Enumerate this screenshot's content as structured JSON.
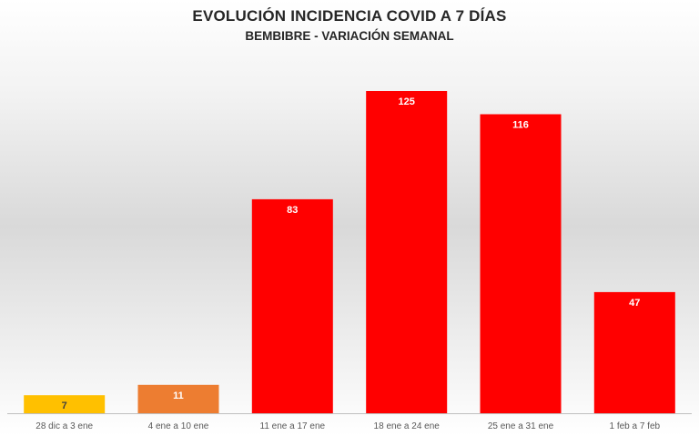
{
  "chart_data": {
    "type": "bar",
    "title": "EVOLUCIÓN INCIDENCIA COVID A 7 DÍAS",
    "subtitle": "BEMBIBRE - VARIACIÓN SEMANAL",
    "xlabel": "",
    "ylabel": "",
    "categories": [
      "28 dic a 3 ene",
      "4 ene a 10 ene",
      "11 ene a 17 ene",
      "18 ene a 24 ene",
      "25 ene a 31 ene",
      "1 feb a 7 feb"
    ],
    "values": [
      7,
      11,
      83,
      125,
      116,
      47
    ],
    "colors": [
      "#ffc000",
      "#ed7d31",
      "#ff0000",
      "#ff0000",
      "#ff0000",
      "#ff0000"
    ],
    "ylim": [
      0,
      125
    ],
    "grid": false,
    "legend": "none",
    "data_labels": true
  }
}
